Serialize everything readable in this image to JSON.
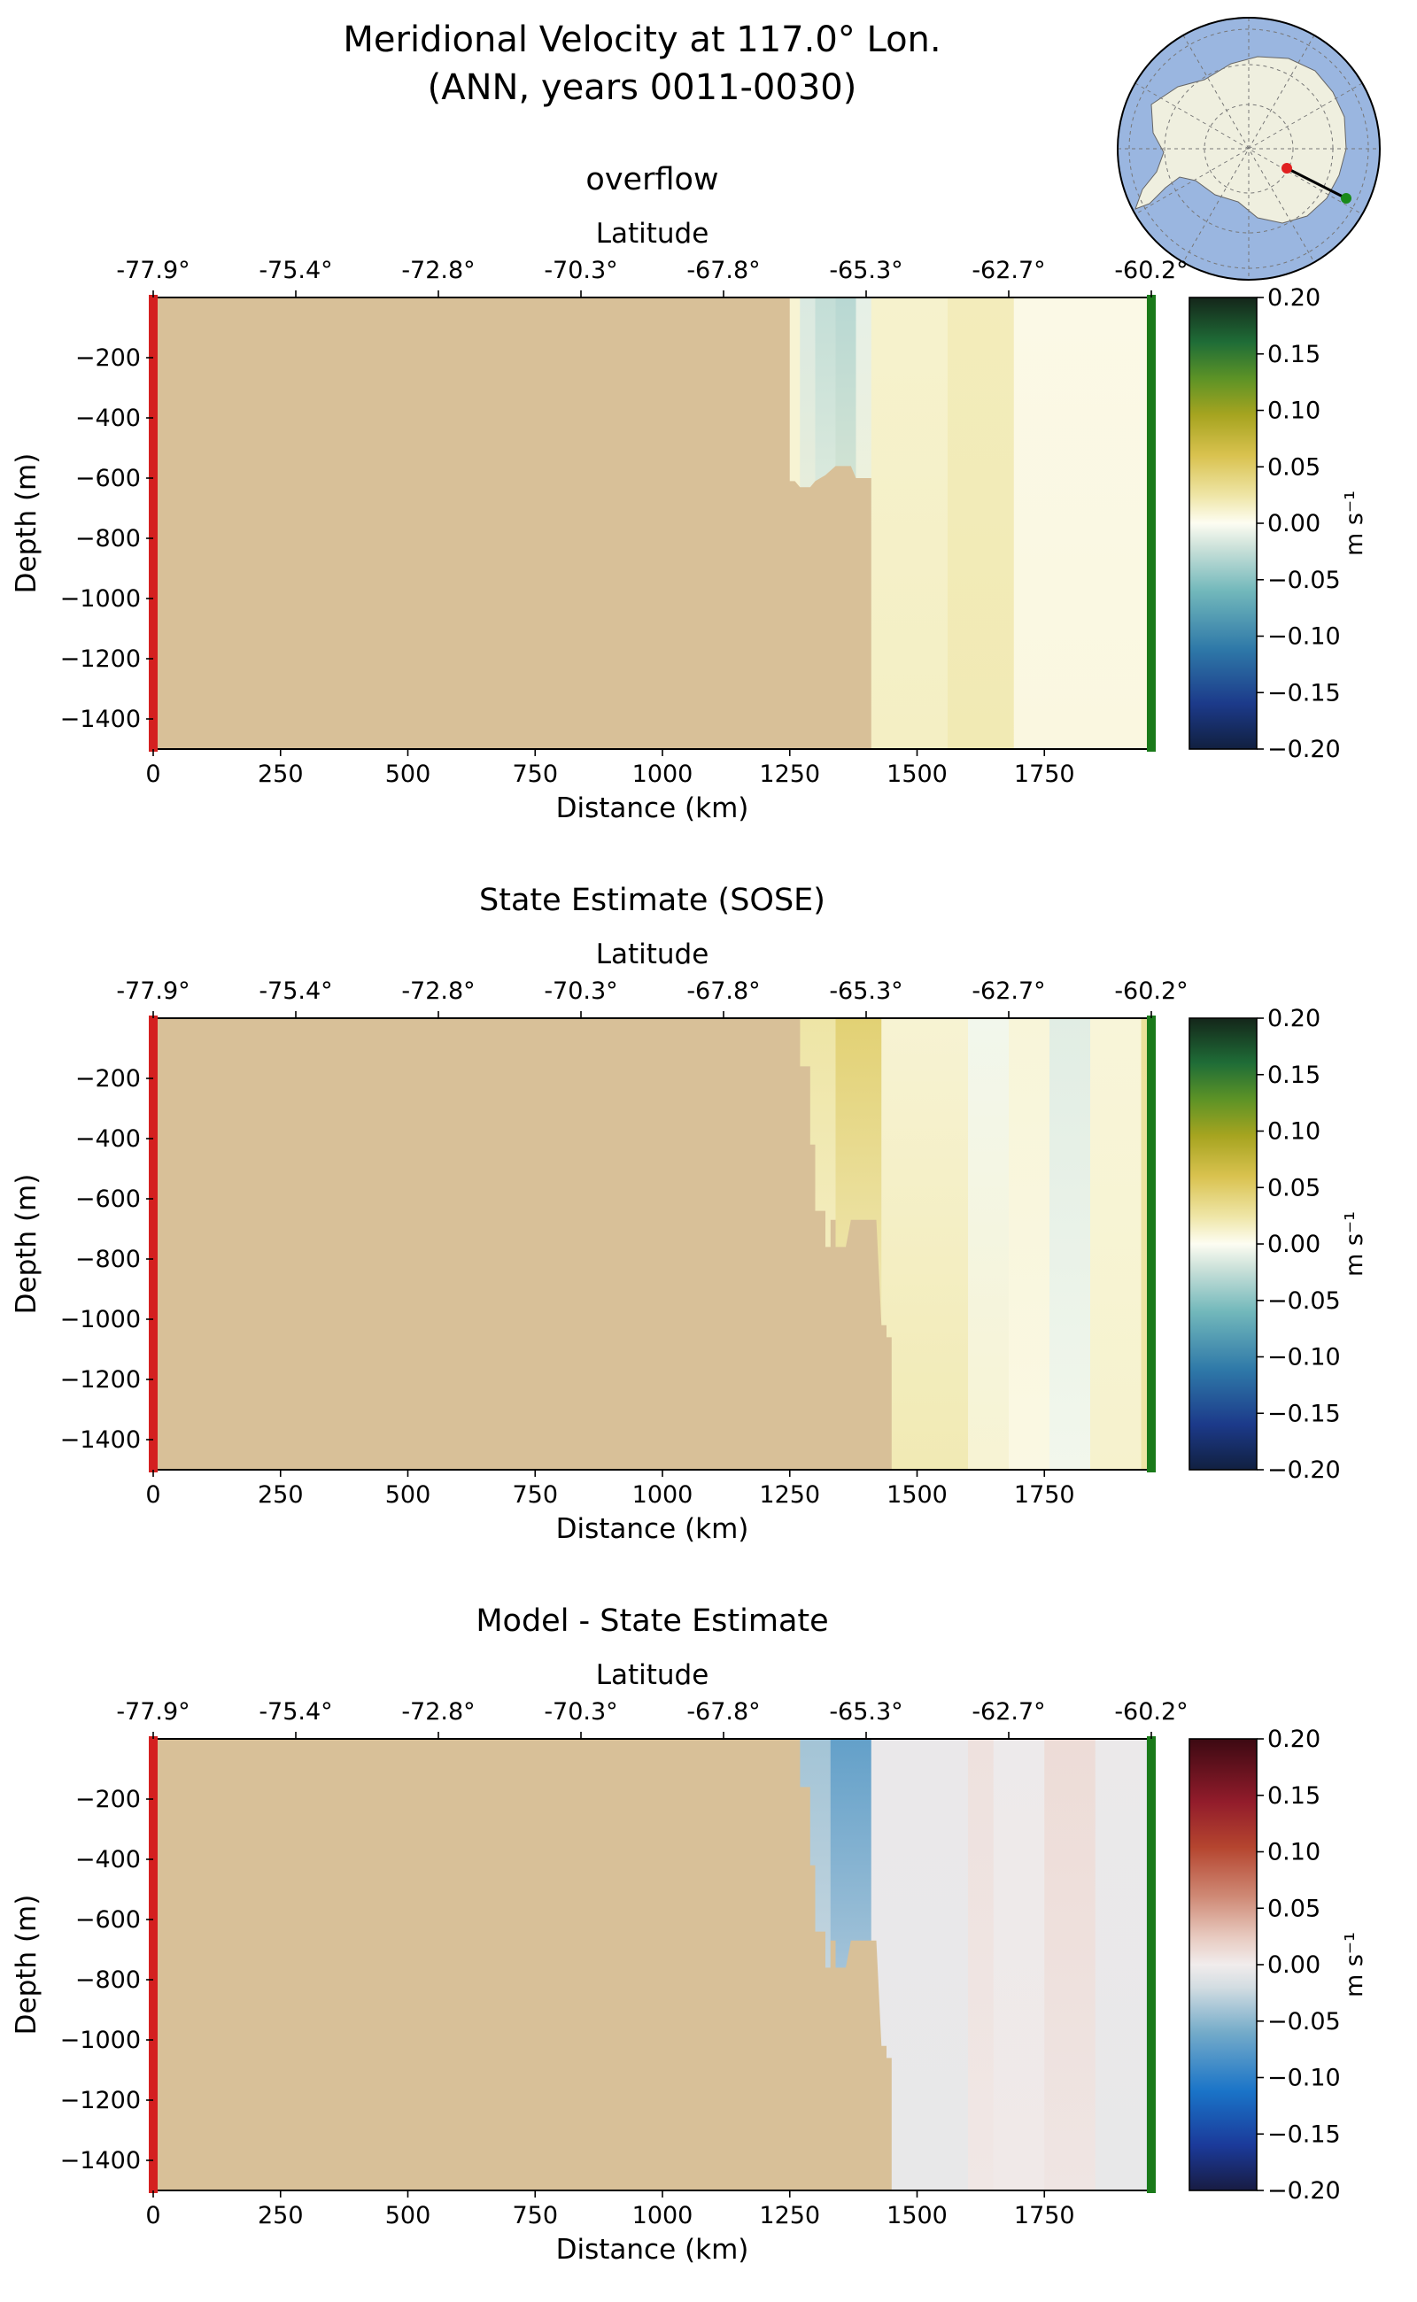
{
  "figure": {
    "title_line1": "Meridional Velocity at 117.0° Lon.",
    "title_line2": "(ANN, years 0011-0030)"
  },
  "colors": {
    "land": "#d8c098",
    "section_start": "#d42020",
    "section_end": "#1a7a1a",
    "ocean_map": "#9ab6e0",
    "continent_map": "#efefdf"
  },
  "inset_map": {
    "projection": "south-polar-stereographic",
    "start_marker": "red-dot",
    "end_marker": "green-dot"
  },
  "chart_data": [
    {
      "type": "heatmap",
      "title": "overflow",
      "xlabel": "Distance (km)",
      "ylabel": "Depth (m)",
      "top_axis_label": "Latitude",
      "xlim": [
        0,
        1960
      ],
      "ylim": [
        -1500,
        0
      ],
      "xticks": [
        0,
        250,
        500,
        750,
        1000,
        1250,
        1500,
        1750
      ],
      "yticks": [
        -200,
        -400,
        -600,
        -800,
        -1000,
        -1200,
        -1400
      ],
      "lat_ticks": [
        {
          "x": 0,
          "label": "-77.9°"
        },
        {
          "x": 280,
          "label": "-75.4°"
        },
        {
          "x": 560,
          "label": "-72.8°"
        },
        {
          "x": 840,
          "label": "-70.3°"
        },
        {
          "x": 1120,
          "label": "-67.8°"
        },
        {
          "x": 1400,
          "label": "-65.3°"
        },
        {
          "x": 1680,
          "label": "-62.7°"
        },
        {
          "x": 1960,
          "label": "-60.2°"
        }
      ],
      "colormap": "delta",
      "clim": [
        -0.2,
        0.2
      ],
      "colorbar_ticks": [
        "0.20",
        "0.15",
        "0.10",
        "0.05",
        "0.00",
        "−0.05",
        "−0.10",
        "−0.15",
        "−0.20"
      ],
      "colorbar_label": "m s⁻¹",
      "bathymetry": [
        [
          1220,
          -630
        ],
        [
          1240,
          -610
        ],
        [
          1260,
          -610
        ],
        [
          1270,
          -630
        ],
        [
          1290,
          -630
        ],
        [
          1300,
          -610
        ],
        [
          1320,
          -590
        ],
        [
          1340,
          -560
        ],
        [
          1360,
          -560
        ],
        [
          1370,
          -560
        ],
        [
          1380,
          -600
        ],
        [
          1395,
          -600
        ],
        [
          1410,
          -600
        ],
        [
          1410,
          -1500
        ]
      ],
      "velocity_columns": [
        {
          "x0": 1250,
          "x1": 1270,
          "top": [
            0.01
          ],
          "bottom": [
            0.01
          ]
        },
        {
          "x0": 1270,
          "x1": 1300,
          "top": [
            -0.015
          ],
          "bottom": [
            0.01
          ]
        },
        {
          "x0": 1300,
          "x1": 1340,
          "top": [
            -0.025
          ],
          "bottom": [
            0.005
          ]
        },
        {
          "x0": 1340,
          "x1": 1380,
          "top": [
            -0.03
          ],
          "bottom": [
            0.01
          ]
        },
        {
          "x0": 1380,
          "x1": 1410,
          "top": [
            -0.01
          ],
          "bottom": [
            0.012
          ]
        },
        {
          "x0": 1410,
          "x1": 1560,
          "top": [
            0.012
          ],
          "bottom": [
            0.015
          ]
        },
        {
          "x0": 1560,
          "x1": 1690,
          "top": [
            0.018
          ],
          "bottom": [
            0.02
          ]
        },
        {
          "x0": 1690,
          "x1": 1950,
          "top": [
            0.004
          ],
          "bottom": [
            0.006
          ]
        },
        {
          "x0": 1950,
          "x1": 1960,
          "top": [
            0.008
          ],
          "bottom": [
            0.008
          ]
        }
      ]
    },
    {
      "type": "heatmap",
      "title": "State Estimate (SOSE)",
      "xlabel": "Distance (km)",
      "ylabel": "Depth (m)",
      "top_axis_label": "Latitude",
      "xlim": [
        0,
        1960
      ],
      "ylim": [
        -1500,
        0
      ],
      "xticks": [
        0,
        250,
        500,
        750,
        1000,
        1250,
        1500,
        1750
      ],
      "yticks": [
        -200,
        -400,
        -600,
        -800,
        -1000,
        -1200,
        -1400
      ],
      "lat_ticks": [
        {
          "x": 0,
          "label": "-77.9°"
        },
        {
          "x": 280,
          "label": "-75.4°"
        },
        {
          "x": 560,
          "label": "-72.8°"
        },
        {
          "x": 840,
          "label": "-70.3°"
        },
        {
          "x": 1120,
          "label": "-67.8°"
        },
        {
          "x": 1400,
          "label": "-65.3°"
        },
        {
          "x": 1680,
          "label": "-62.7°"
        },
        {
          "x": 1960,
          "label": "-60.2°"
        }
      ],
      "colormap": "delta",
      "clim": [
        -0.2,
        0.2
      ],
      "colorbar_ticks": [
        "0.20",
        "0.15",
        "0.10",
        "0.05",
        "0.00",
        "−0.05",
        "−0.10",
        "−0.15",
        "−0.20"
      ],
      "colorbar_label": "m s⁻¹",
      "bathymetry": [
        [
          1270,
          0
        ],
        [
          1270,
          -160
        ],
        [
          1290,
          -160
        ],
        [
          1290,
          -420
        ],
        [
          1300,
          -420
        ],
        [
          1300,
          -640
        ],
        [
          1320,
          -640
        ],
        [
          1320,
          -760
        ],
        [
          1330,
          -760
        ],
        [
          1330,
          -670
        ],
        [
          1340,
          -670
        ],
        [
          1340,
          -760
        ],
        [
          1360,
          -760
        ],
        [
          1370,
          -670
        ],
        [
          1400,
          -670
        ],
        [
          1420,
          -670
        ],
        [
          1430,
          -1020
        ],
        [
          1440,
          -1020
        ],
        [
          1440,
          -1060
        ],
        [
          1450,
          -1060
        ],
        [
          1450,
          -1500
        ]
      ],
      "velocity_columns": [
        {
          "x0": 1270,
          "x1": 1340,
          "top": [
            0.025
          ],
          "bottom": [
            0.01
          ]
        },
        {
          "x0": 1340,
          "x1": 1430,
          "top": [
            0.045
          ],
          "bottom": [
            0.01
          ]
        },
        {
          "x0": 1430,
          "x1": 1600,
          "top": [
            0.01
          ],
          "bottom": [
            0.02
          ]
        },
        {
          "x0": 1600,
          "x1": 1680,
          "top": [
            -0.005
          ],
          "bottom": [
            0.01
          ]
        },
        {
          "x0": 1680,
          "x1": 1760,
          "top": [
            0.008
          ],
          "bottom": [
            0.005
          ]
        },
        {
          "x0": 1760,
          "x1": 1840,
          "top": [
            -0.012
          ],
          "bottom": [
            -0.005
          ]
        },
        {
          "x0": 1840,
          "x1": 1940,
          "top": [
            0.008
          ],
          "bottom": [
            0.012
          ]
        },
        {
          "x0": 1940,
          "x1": 1960,
          "top": [
            0.03
          ],
          "bottom": [
            0.025
          ]
        }
      ]
    },
    {
      "type": "heatmap",
      "title": "Model - State Estimate",
      "xlabel": "Distance (km)",
      "ylabel": "Depth (m)",
      "top_axis_label": "Latitude",
      "xlim": [
        0,
        1960
      ],
      "ylim": [
        -1500,
        0
      ],
      "xticks": [
        0,
        250,
        500,
        750,
        1000,
        1250,
        1500,
        1750
      ],
      "yticks": [
        -200,
        -400,
        -600,
        -800,
        -1000,
        -1200,
        -1400
      ],
      "lat_ticks": [
        {
          "x": 0,
          "label": "-77.9°"
        },
        {
          "x": 280,
          "label": "-75.4°"
        },
        {
          "x": 560,
          "label": "-72.8°"
        },
        {
          "x": 840,
          "label": "-70.3°"
        },
        {
          "x": 1120,
          "label": "-67.8°"
        },
        {
          "x": 1400,
          "label": "-65.3°"
        },
        {
          "x": 1680,
          "label": "-62.7°"
        },
        {
          "x": 1960,
          "label": "-60.2°"
        }
      ],
      "colormap": "balance",
      "clim": [
        -0.2,
        0.2
      ],
      "colorbar_ticks": [
        "0.20",
        "0.15",
        "0.10",
        "0.05",
        "0.00",
        "−0.05",
        "−0.10",
        "−0.15",
        "−0.20"
      ],
      "colorbar_label": "m s⁻¹",
      "bathymetry": [
        [
          1270,
          0
        ],
        [
          1270,
          -160
        ],
        [
          1290,
          -160
        ],
        [
          1290,
          -420
        ],
        [
          1300,
          -420
        ],
        [
          1300,
          -640
        ],
        [
          1320,
          -640
        ],
        [
          1320,
          -760
        ],
        [
          1330,
          -760
        ],
        [
          1330,
          -670
        ],
        [
          1340,
          -670
        ],
        [
          1340,
          -760
        ],
        [
          1360,
          -760
        ],
        [
          1370,
          -670
        ],
        [
          1400,
          -670
        ],
        [
          1420,
          -670
        ],
        [
          1430,
          -1020
        ],
        [
          1440,
          -1020
        ],
        [
          1440,
          -1060
        ],
        [
          1450,
          -1060
        ],
        [
          1450,
          -1500
        ]
      ],
      "velocity_columns": [
        {
          "x0": 1270,
          "x1": 1330,
          "top": [
            -0.04
          ],
          "bottom": [
            -0.01
          ]
        },
        {
          "x0": 1330,
          "x1": 1410,
          "top": [
            -0.07
          ],
          "bottom": [
            -0.01
          ]
        },
        {
          "x0": 1410,
          "x1": 1600,
          "top": [
            -0.005
          ],
          "bottom": [
            -0.006
          ]
        },
        {
          "x0": 1600,
          "x1": 1650,
          "top": [
            0.008
          ],
          "bottom": [
            0.004
          ]
        },
        {
          "x0": 1650,
          "x1": 1750,
          "top": [
            -0.003
          ],
          "bottom": [
            0.002
          ]
        },
        {
          "x0": 1750,
          "x1": 1850,
          "top": [
            0.012
          ],
          "bottom": [
            0.005
          ]
        },
        {
          "x0": 1850,
          "x1": 1950,
          "top": [
            -0.004
          ],
          "bottom": [
            -0.006
          ]
        },
        {
          "x0": 1950,
          "x1": 1960,
          "top": [
            -0.02
          ],
          "bottom": [
            -0.02
          ]
        }
      ]
    }
  ]
}
